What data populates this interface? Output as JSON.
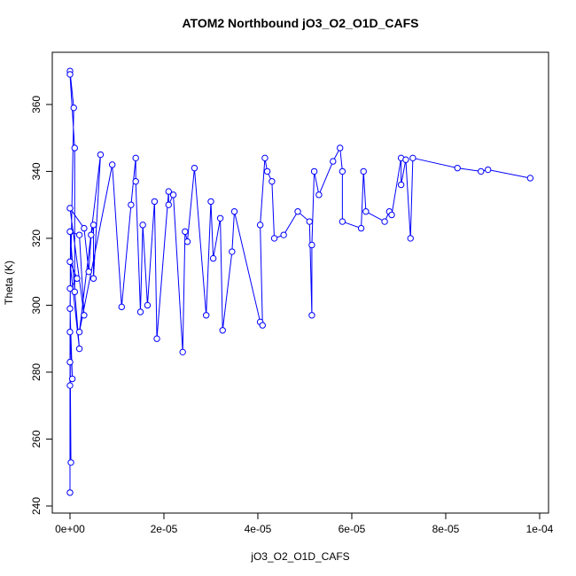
{
  "chart_data": {
    "type": "line",
    "title": "ATOM2 Northbound jO3_O2_O1D_CAFS",
    "x_label": "jO3_O2_O1D_CAFS",
    "y_label": "Theta (K)",
    "color": "#0000ff",
    "markers": true,
    "xlim": [
      -3.77e-06,
      0.00010189
    ],
    "ylim": [
      237.88,
      375.6
    ],
    "xticks": [
      {
        "value": 0,
        "label": "0e+00"
      },
      {
        "value": 2e-05,
        "label": "2e-05"
      },
      {
        "value": 4e-05,
        "label": "4e-05"
      },
      {
        "value": 6e-05,
        "label": "6e-05"
      },
      {
        "value": 8e-05,
        "label": "8e-05"
      },
      {
        "value": 0.0001,
        "label": "1e-04"
      }
    ],
    "yticks": [
      240,
      260,
      280,
      300,
      320,
      340,
      360
    ],
    "x": [
      0,
      0,
      1e-07,
      0,
      2e-07,
      0,
      5e-07,
      0,
      8e-07,
      0,
      0,
      1e-06,
      1e-06,
      0,
      1.5e-06,
      0,
      2e-06,
      0,
      2e-06,
      3e-06,
      0,
      3e-06,
      4e-06,
      4.5e-06,
      5e-06,
      5e-06,
      6.5e-06,
      2e-06,
      9e-06,
      1.1e-05,
      1.3e-05,
      1.4e-05,
      1.4e-05,
      1.5e-05,
      1.55e-05,
      1.65e-05,
      1.8e-05,
      1.85e-05,
      2.1e-05,
      2.1e-05,
      2.2e-05,
      2.4e-05,
      2.45e-05,
      2.5e-05,
      2.65e-05,
      2.9e-05,
      3e-05,
      3.05e-05,
      3.2e-05,
      3.25e-05,
      3.45e-05,
      3.5e-05,
      4.05e-05,
      4.1e-05,
      4.05e-05,
      4.15e-05,
      4.2e-05,
      4.3e-05,
      4.35e-05,
      4.55e-05,
      4.85e-05,
      5.1e-05,
      5.15e-05,
      5.15e-05,
      5.2e-05,
      5.3e-05,
      5.6e-05,
      5.75e-05,
      5.8e-05,
      5.8e-05,
      6.2e-05,
      6.25e-05,
      6.3e-05,
      6.7e-05,
      6.8e-05,
      6.85e-05,
      7.05e-05,
      7.05e-05,
      7.15e-05,
      7.25e-05,
      7.3e-05,
      8.25e-05,
      8.75e-05,
      8.9e-05,
      9.8e-05
    ],
    "values": [
      244,
      276,
      322,
      283,
      253,
      292,
      278,
      299,
      359,
      370,
      369,
      347,
      304,
      305,
      308,
      313,
      287,
      322,
      321,
      297,
      329,
      323,
      310,
      321,
      324,
      308,
      345,
      292,
      342,
      299.5,
      330,
      344,
      337,
      298,
      324,
      300,
      331,
      290,
      334,
      330,
      333,
      286,
      322,
      319,
      341,
      297,
      331,
      314,
      326,
      292.5,
      316,
      328,
      295,
      294,
      324,
      344,
      340,
      337,
      320,
      321,
      328,
      325,
      297,
      318,
      340,
      333,
      343,
      347,
      340,
      325,
      323,
      340,
      328,
      325,
      328,
      327,
      344,
      336,
      343.5,
      320,
      344,
      341,
      340,
      340.5,
      338
    ]
  }
}
